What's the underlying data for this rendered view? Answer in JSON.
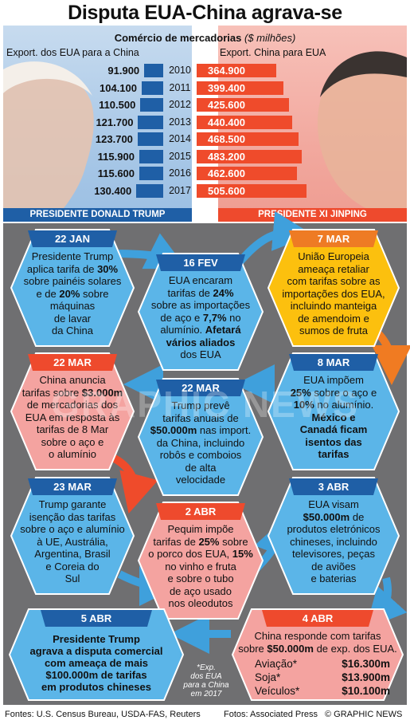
{
  "title": "Disputa EUA-China agrava-se",
  "subtitle": "Comércio de mercadorias",
  "subtitle_unit": "($ milhões)",
  "left_header": "Export. dos EUA para a  China",
  "right_header": "Export. China para EUA",
  "left_label": "PRESIDENTE DONALD TRUMP",
  "right_label": "PRESIDENTE XI JINPING",
  "colors": {
    "us_blue": "#1f5fa6",
    "china_red": "#ef4b2b",
    "hex_blue": "#5bb5e8",
    "hex_pink": "#f4a3a0",
    "hex_yellow": "#fcc00e",
    "header_blue": "#1f5fa6",
    "header_red": "#ee4a2d",
    "header_orange": "#ee7b24"
  },
  "chart_data": {
    "type": "bar",
    "categories": [
      "2010",
      "2011",
      "2012",
      "2013",
      "2014",
      "2015",
      "2016",
      "2017"
    ],
    "series": [
      {
        "name": "Export. dos EUA para a  China",
        "values": [
          91900,
          104100,
          110500,
          121700,
          123700,
          115900,
          115600,
          130400
        ],
        "labels": [
          "91.900",
          "104.100",
          "110.500",
          "121.700",
          "123.700",
          "115.900",
          "115.600",
          "130.400"
        ]
      },
      {
        "name": "Export. China para EUA",
        "values": [
          364900,
          399400,
          425600,
          440400,
          468500,
          483200,
          462600,
          505600
        ],
        "labels": [
          "364.900",
          "399.400",
          "425.600",
          "440.400",
          "468.500",
          "483.200",
          "462.600",
          "505.600"
        ]
      }
    ],
    "xlabel": "",
    "ylabel": ""
  },
  "events": [
    {
      "id": "22jan",
      "date": "22 JAN",
      "lines": [
        "Presidente Trump",
        "aplica tarifa de <b>30%</b>",
        "sobre painéis solares",
        "e de <b>20%</b> sobre",
        "máquinas",
        "de lavar",
        "da China"
      ]
    },
    {
      "id": "16fev",
      "date": "16 FEV",
      "lines": [
        "EUA encaram",
        "tarifas de <b>24%</b>",
        "sobre as importações",
        "de aço e <b>7,7%</b> no",
        "alumínio. <b>Afetará</b>",
        "<b>vários aliados</b>",
        "dos EUA"
      ]
    },
    {
      "id": "7mar",
      "date": "7 MAR",
      "lines": [
        "União Europeia",
        "ameaça retaliar",
        "com tarifas sobre as",
        "importações dos EUA,",
        "incluindo manteiga",
        "de amendoim e",
        "sumos de fruta"
      ]
    },
    {
      "id": "22mar",
      "date": "22 MAR",
      "lines": [
        "China anuncia",
        "tarifas sobre <b>$3.000m</b>",
        "de mercadorias dos",
        "EUA em resposta às",
        "tarifas de 8 Mar",
        "sobre o aço e",
        "o alumínio"
      ]
    },
    {
      "id": "22mar2",
      "date": "22 MAR",
      "lines": [
        "Trump prevê",
        "tarifas anuais de",
        "<b>$50.000m</b> nas import.",
        "da China, incluindo",
        "robôs e comboios",
        "de alta",
        "velocidade"
      ]
    },
    {
      "id": "8mar",
      "date": "8 MAR",
      "lines": [
        "EUA impõem",
        "<b>25%</b> sobre o aço e",
        "<b>10%</b> no alumínio.",
        "<b>México e</b>",
        "<b>Canadá ficam</b>",
        "<b>isentos das</b>",
        "<b>tarifas</b>"
      ]
    },
    {
      "id": "23mar",
      "date": "23 MAR",
      "lines": [
        "Trump garante",
        "isenção das tarifas",
        "sobre o aço e alumínio",
        "à UE, Austrália,",
        "Argentina, Brasil",
        "e Coreia do",
        "Sul"
      ]
    },
    {
      "id": "2abr",
      "date": "2 ABR",
      "lines": [
        "Pequim impõe",
        "tarifas de <b>25%</b> sobre",
        "o porco dos EUA, <b>15%</b>",
        "no vinho e fruta",
        "e sobre o tubo",
        "de aço usado",
        "nos oleodutos"
      ]
    },
    {
      "id": "3abr",
      "date": "3 ABR",
      "lines": [
        "EUA visam",
        "<b>$50.000m</b> de",
        "produtos eletrónicos",
        "chineses, incluindo",
        "televisores, peças",
        "de aviões",
        "e baterias"
      ]
    },
    {
      "id": "5abr",
      "date": "5 ABR",
      "lines": [
        "<b>Presidente Trump</b>",
        "<b>agrava a disputa comercial</b>",
        "<b>com ameaça de mais</b>",
        "<b>$100.000m de tarifas</b>",
        "<b>em produtos chineses</b>"
      ]
    },
    {
      "id": "4abr",
      "date": "4 ABR",
      "lines": [
        "China responde com tarifas",
        "sobre <b>$50.000m</b> de exp. dos EUA."
      ]
    }
  ],
  "tariff_items": [
    {
      "label": "Aviação*",
      "value": "$16.300m"
    },
    {
      "label": "Soja*",
      "value": "$13.900m"
    },
    {
      "label": "Veículos*",
      "value": "$10.100m"
    }
  ],
  "footnote": [
    "*Exp.",
    "dos EUA",
    "para a China",
    "em 2017"
  ],
  "footer": {
    "sources": "Fontes: U.S. Census Bureau, USDA-FAS, Reuters",
    "photos": "Fotos: Associated Press",
    "credit": "© GRAPHIC NEWS"
  },
  "watermark": "GRAPHIC NEWS"
}
